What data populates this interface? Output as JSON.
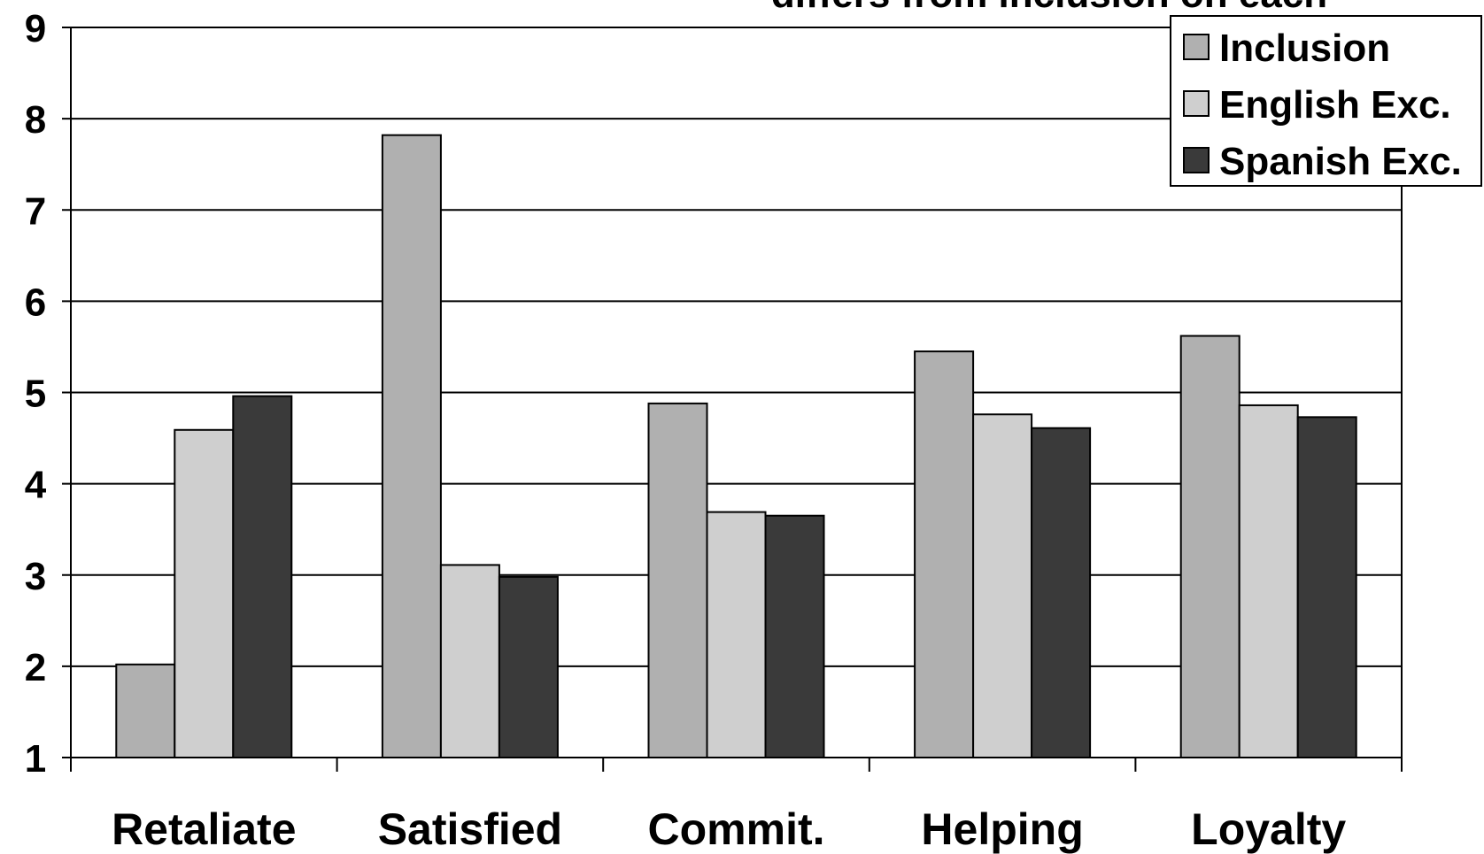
{
  "top_text": "differs from inclusion on each",
  "chart_data": {
    "type": "bar",
    "categories": [
      "Retaliate",
      "Satisfied",
      "Commit.",
      "Helping",
      "Loyalty"
    ],
    "series": [
      {
        "name": "Inclusion",
        "color": "#b0b0b0",
        "values": [
          2.02,
          7.82,
          4.88,
          5.45,
          5.62
        ]
      },
      {
        "name": "English Exc.",
        "color": "#cfcfcf",
        "values": [
          4.59,
          3.11,
          3.69,
          4.76,
          4.86
        ]
      },
      {
        "name": "Spanish Exc.",
        "color": "#3a3a3a",
        "values": [
          4.96,
          2.98,
          3.65,
          4.61,
          4.73
        ]
      }
    ],
    "ylim": [
      1,
      9
    ],
    "yticks": [
      "1",
      "2",
      "3",
      "4",
      "5",
      "6",
      "7",
      "8",
      "9"
    ],
    "grid": true,
    "legend_position": "top-right",
    "xlabel": "",
    "ylabel": "",
    "title": ""
  }
}
